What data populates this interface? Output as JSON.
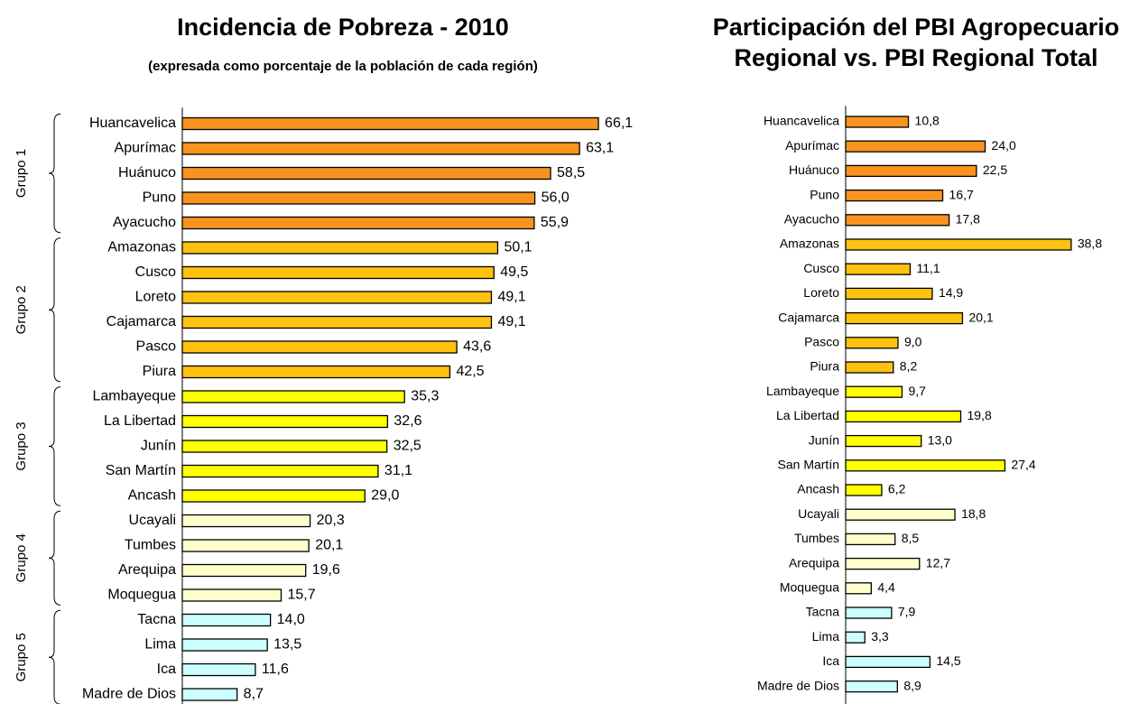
{
  "chart_data": [
    {
      "type": "bar",
      "orientation": "horizontal",
      "title": "Incidencia de Pobreza - 2010",
      "subtitle": "(expresada como porcentaje de la población de cada región)",
      "categories": [
        "Huancavelica",
        "Apurímac",
        "Huánuco",
        "Puno",
        "Ayacucho",
        "Amazonas",
        "Cusco",
        "Loreto",
        "Cajamarca",
        "Pasco",
        "Piura",
        "Lambayeque",
        "La Libertad",
        "Junín",
        "San Martín",
        "Ancash",
        "Ucayali",
        "Tumbes",
        "Arequipa",
        "Moquegua",
        "Tacna",
        "Lima",
        "Ica",
        "Madre de Dios"
      ],
      "series": [
        {
          "name": "Grupo 1",
          "color": "#f7931e",
          "values": [
            66.1,
            63.1,
            58.5,
            56.0,
            55.9,
            null,
            null,
            null,
            null,
            null,
            null,
            null,
            null,
            null,
            null,
            null,
            null,
            null,
            null,
            null,
            null,
            null,
            null,
            null
          ],
          "value_labels": [
            "66,1",
            "63,1",
            "58,5",
            "56,0",
            "55,9",
            null,
            null,
            null,
            null,
            null,
            null,
            null,
            null,
            null,
            null,
            null,
            null,
            null,
            null,
            null,
            null,
            null,
            null,
            null
          ]
        },
        {
          "name": "Grupo 2",
          "color": "#ffc20e",
          "values": [
            null,
            null,
            null,
            null,
            null,
            50.1,
            49.5,
            49.1,
            49.1,
            43.6,
            42.5,
            null,
            null,
            null,
            null,
            null,
            null,
            null,
            null,
            null,
            null,
            null,
            null,
            null
          ],
          "value_labels": [
            null,
            null,
            null,
            null,
            null,
            "50,1",
            "49,5",
            "49,1",
            "49,1",
            "43,6",
            "42,5",
            null,
            null,
            null,
            null,
            null,
            null,
            null,
            null,
            null,
            null,
            null,
            null,
            null
          ]
        },
        {
          "name": "Grupo 3",
          "color": "#ffff00",
          "values": [
            null,
            null,
            null,
            null,
            null,
            null,
            null,
            null,
            null,
            null,
            null,
            35.3,
            32.6,
            32.5,
            31.1,
            29.0,
            null,
            null,
            null,
            null,
            null,
            null,
            null,
            null
          ],
          "value_labels": [
            null,
            null,
            null,
            null,
            null,
            null,
            null,
            null,
            null,
            null,
            null,
            "35,3",
            "32,6",
            "32,5",
            "31,1",
            "29,0",
            null,
            null,
            null,
            null,
            null,
            null,
            null,
            null
          ]
        },
        {
          "name": "Grupo 4",
          "color": "#ffffcc",
          "values": [
            null,
            null,
            null,
            null,
            null,
            null,
            null,
            null,
            null,
            null,
            null,
            null,
            null,
            null,
            null,
            null,
            20.3,
            20.1,
            19.6,
            15.7,
            null,
            null,
            null,
            null
          ],
          "value_labels": [
            null,
            null,
            null,
            null,
            null,
            null,
            null,
            null,
            null,
            null,
            null,
            null,
            null,
            null,
            null,
            null,
            "20,3",
            "20,1",
            "19,6",
            "15,7",
            null,
            null,
            null,
            null
          ]
        },
        {
          "name": "Grupo 5",
          "color": "#ccffff",
          "values": [
            null,
            null,
            null,
            null,
            null,
            null,
            null,
            null,
            null,
            null,
            null,
            null,
            null,
            null,
            null,
            null,
            null,
            null,
            null,
            null,
            14.0,
            13.5,
            11.6,
            8.7
          ],
          "value_labels": [
            null,
            null,
            null,
            null,
            null,
            null,
            null,
            null,
            null,
            null,
            null,
            null,
            null,
            null,
            null,
            null,
            null,
            null,
            null,
            null,
            "14,0",
            "13,5",
            "11,6",
            "8,7"
          ]
        }
      ],
      "xlim": [
        0,
        80
      ]
    },
    {
      "type": "bar",
      "orientation": "horizontal",
      "title": [
        "Participación del PBI Agropecuario",
        "Regional vs. PBI Regional Total"
      ],
      "categories": [
        "Huancavelica",
        "Apurímac",
        "Huánuco",
        "Puno",
        "Ayacucho",
        "Amazonas",
        "Cusco",
        "Loreto",
        "Cajamarca",
        "Pasco",
        "Piura",
        "Lambayeque",
        "La Libertad",
        "Junín",
        "San Martín",
        "Ancash",
        "Ucayali",
        "Tumbes",
        "Arequipa",
        "Moquegua",
        "Tacna",
        "Lima",
        "Ica",
        "Madre de Dios"
      ],
      "values": [
        10.8,
        24.0,
        22.5,
        16.7,
        17.8,
        38.8,
        11.1,
        14.9,
        20.1,
        9.0,
        8.2,
        9.7,
        19.8,
        13.0,
        27.4,
        6.2,
        18.8,
        8.5,
        12.7,
        4.4,
        7.9,
        3.3,
        14.5,
        8.9
      ],
      "value_labels": [
        "10,8",
        "24,0",
        "22,5",
        "16,7",
        "17,8",
        "38,8",
        "11,1",
        "14,9",
        "20,1",
        "9,0",
        "8,2",
        "9,7",
        "19,8",
        "13,0",
        "27,4",
        "6,2",
        "18,8",
        "8,5",
        "12,7",
        "4,4",
        "7,9",
        "3,3",
        "14,5",
        "8,9"
      ],
      "colors": [
        "#f7931e",
        "#f7931e",
        "#f7931e",
        "#f7931e",
        "#f7931e",
        "#ffc20e",
        "#ffc20e",
        "#ffc20e",
        "#ffc20e",
        "#ffc20e",
        "#ffc20e",
        "#ffff00",
        "#ffff00",
        "#ffff00",
        "#ffff00",
        "#ffff00",
        "#ffffcc",
        "#ffffcc",
        "#ffffcc",
        "#ffffcc",
        "#ccffff",
        "#ccffff",
        "#ccffff",
        "#ccffff"
      ],
      "xlim": [
        0,
        50
      ]
    }
  ]
}
